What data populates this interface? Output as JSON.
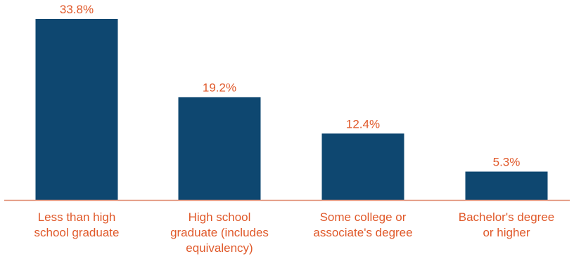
{
  "chart_data": {
    "type": "bar",
    "categories": [
      "Less than high school graduate",
      "High school graduate (includes equivalency)",
      "Some college or associate's degree",
      "Bachelor's degree or higher"
    ],
    "category_lines": [
      [
        "Less than high",
        "school graduate"
      ],
      [
        "High school",
        "graduate (includes",
        "equivalency)"
      ],
      [
        "Some college or",
        "associate's degree"
      ],
      [
        "Bachelor's degree",
        "or higher"
      ]
    ],
    "values": [
      33.8,
      19.2,
      12.4,
      5.3
    ],
    "value_labels": [
      "33.8%",
      "19.2%",
      "12.4%",
      "5.3%"
    ],
    "title": "",
    "xlabel": "",
    "ylabel": "",
    "ylim": [
      0,
      35
    ],
    "grid": false,
    "legend": "none",
    "colors": {
      "bar": "#0e4770",
      "value_label": "#e0592a",
      "axis": "#e08a70",
      "category_label": "#e0592a"
    }
  }
}
